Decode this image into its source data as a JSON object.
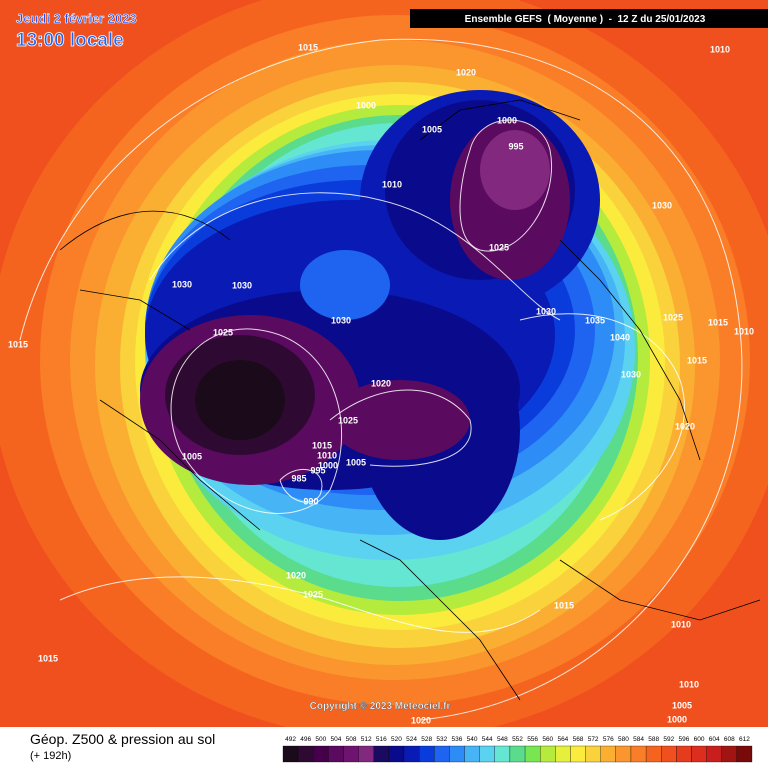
{
  "header": {
    "date": "Jeudi 2 février 2023",
    "time": "13:00 locale",
    "run": "Ensemble GEFS  ( Moyenne )  -  12 Z du 25/01/2023"
  },
  "map": {
    "pressure_labels": [
      "1015",
      "1020",
      "1010",
      "1000",
      "1005",
      "1000",
      "995",
      "1010",
      "1030",
      "1025",
      "1030",
      "1030",
      "1030",
      "1030",
      "1035",
      "1025",
      "1015",
      "1010",
      "1040",
      "1015",
      "1025",
      "1015",
      "1030",
      "1020",
      "1025",
      "1020",
      "1015",
      "1010",
      "1005",
      "1005",
      "1000",
      "995",
      "985",
      "990",
      "1020",
      "1025",
      "1015",
      "1010",
      "1015",
      "1010",
      "1005",
      "1000",
      "1020"
    ],
    "copyright": "Copyright © 2023 Meteociel.fr"
  },
  "footer": {
    "title": "Géop. Z500 & pression au sol",
    "lead": "(+ 192h)"
  },
  "legend": {
    "values": [
      492,
      496,
      500,
      504,
      508,
      512,
      516,
      520,
      524,
      528,
      532,
      536,
      540,
      544,
      548,
      552,
      556,
      560,
      564,
      568,
      572,
      576,
      580,
      584,
      588,
      592,
      596,
      600,
      604,
      608,
      612
    ],
    "colors": [
      "#1a0a1a",
      "#2e0a33",
      "#46004b",
      "#5a0a5f",
      "#6e1470",
      "#82287f",
      "#1a0a60",
      "#0a0a8c",
      "#0a1ab4",
      "#0a3cdc",
      "#1e64f0",
      "#2d8cf5",
      "#46b4f5",
      "#5ad2f0",
      "#64e6d2",
      "#5adc8c",
      "#78e650",
      "#b4eb3c",
      "#e6f03c",
      "#faeb3c",
      "#fad23c",
      "#faaf32",
      "#fa962d",
      "#fa7d28",
      "#f5641e",
      "#f0501e",
      "#e63c1e",
      "#dc2d1e",
      "#c81e1e",
      "#a01414",
      "#780a0a"
    ]
  }
}
